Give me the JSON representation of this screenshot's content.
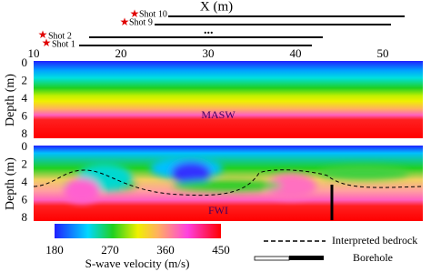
{
  "x_axis": {
    "title": "X (m)",
    "ticks": [
      10,
      20,
      30,
      40,
      50
    ]
  },
  "shots": [
    {
      "label": "Shot 10"
    },
    {
      "label": "Shot 9"
    },
    {
      "label": "Shot 2"
    },
    {
      "label": "Shot 1"
    }
  ],
  "ellipsis": "...",
  "panels": [
    {
      "y_label": "Depth (m)",
      "y_ticks": [
        0,
        2,
        4,
        6,
        8
      ],
      "label": "MASW"
    },
    {
      "y_label": "Depth (m)",
      "y_ticks": [
        0,
        2,
        4,
        6,
        8
      ],
      "label": "FWI"
    }
  ],
  "colorbar": {
    "title": "S-wave velocity (m/s)",
    "ticks": [
      180,
      270,
      360,
      450
    ]
  },
  "legend": [
    {
      "label": "Interpreted bedrock"
    },
    {
      "label": "Borehole"
    }
  ]
}
